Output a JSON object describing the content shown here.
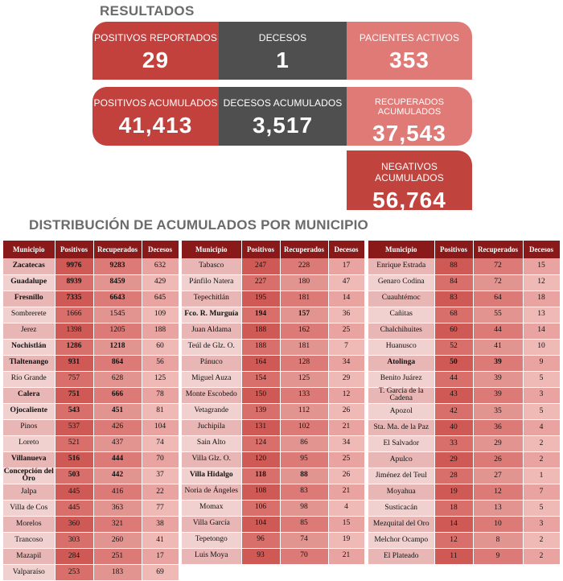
{
  "header": {
    "title": "RESULTADOS"
  },
  "cards": {
    "positivos_reportados": {
      "label": "POSITIVOS REPORTADOS",
      "value": "29"
    },
    "decesos": {
      "label": "DECESOS",
      "value": "1"
    },
    "pacientes_activos": {
      "label": "PACIENTES ACTIVOS",
      "value": "353"
    },
    "positivos_acumulados": {
      "label": "POSITIVOS ACUMULADOS",
      "value": "41,413"
    },
    "decesos_acumulados": {
      "label": "DECESOS ACUMULADOS",
      "value": "3,517"
    },
    "recuperados_acumulados": {
      "label": "RECUPERADOS ACUMULADOS",
      "value": "37,543"
    },
    "negativos_acumulados": {
      "label": "NEGATIVOS ACUMULADOS",
      "value": "56,764"
    }
  },
  "subtitle": "DISTRIBUCIÓN DE ACUMULADOS POR MUNICIPIO",
  "columns": [
    "Municipio",
    "Positivos",
    "Recuperados",
    "Decesos"
  ],
  "table1": [
    {
      "m": "Zacatecas",
      "p": "9976",
      "r": "9283",
      "d": "632",
      "b": true
    },
    {
      "m": "Guadalupe",
      "p": "8939",
      "r": "8459",
      "d": "429",
      "b": true
    },
    {
      "m": "Fresnillo",
      "p": "7335",
      "r": "6643",
      "d": "645",
      "b": true
    },
    {
      "m": "Sombrerete",
      "p": "1666",
      "r": "1545",
      "d": "109"
    },
    {
      "m": "Jerez",
      "p": "1398",
      "r": "1205",
      "d": "188"
    },
    {
      "m": "Nochistlán",
      "p": "1286",
      "r": "1218",
      "d": "60",
      "b": true
    },
    {
      "m": "Tlaltenango",
      "p": "931",
      "r": "864",
      "d": "56",
      "b": true
    },
    {
      "m": "Río Grande",
      "p": "757",
      "r": "628",
      "d": "125"
    },
    {
      "m": "Calera",
      "p": "751",
      "r": "666",
      "d": "78",
      "b": true
    },
    {
      "m": "Ojocaliente",
      "p": "543",
      "r": "451",
      "d": "81",
      "b": true
    },
    {
      "m": "Pinos",
      "p": "537",
      "r": "426",
      "d": "104"
    },
    {
      "m": "Loreto",
      "p": "521",
      "r": "437",
      "d": "74"
    },
    {
      "m": "Villanueva",
      "p": "516",
      "r": "444",
      "d": "70",
      "b": true
    },
    {
      "m": "Concepción del Oro",
      "p": "503",
      "r": "442",
      "d": "37",
      "b": true
    },
    {
      "m": "Jalpa",
      "p": "445",
      "r": "416",
      "d": "22"
    },
    {
      "m": "Villa de Cos",
      "p": "445",
      "r": "363",
      "d": "77"
    },
    {
      "m": "Morelos",
      "p": "360",
      "r": "321",
      "d": "38"
    },
    {
      "m": "Trancoso",
      "p": "303",
      "r": "260",
      "d": "41"
    },
    {
      "m": "Mazapil",
      "p": "284",
      "r": "251",
      "d": "17"
    },
    {
      "m": "Valparaíso",
      "p": "253",
      "r": "183",
      "d": "69"
    }
  ],
  "table2": [
    {
      "m": "Tabasco",
      "p": "247",
      "r": "228",
      "d": "17"
    },
    {
      "m": "Pánfilo Natera",
      "p": "227",
      "r": "180",
      "d": "47"
    },
    {
      "m": "Tepechitlán",
      "p": "195",
      "r": "181",
      "d": "14"
    },
    {
      "m": "Fco. R. Murguía",
      "p": "194",
      "r": "157",
      "d": "36",
      "b": true
    },
    {
      "m": "Juan Aldama",
      "p": "188",
      "r": "162",
      "d": "25"
    },
    {
      "m": "Teúl de Glz. O.",
      "p": "188",
      "r": "181",
      "d": "7"
    },
    {
      "m": "Pánuco",
      "p": "164",
      "r": "128",
      "d": "34"
    },
    {
      "m": "Miguel Auza",
      "p": "154",
      "r": "125",
      "d": "29"
    },
    {
      "m": "Monte Escobedo",
      "p": "150",
      "r": "133",
      "d": "12"
    },
    {
      "m": "Vetagrande",
      "p": "139",
      "r": "112",
      "d": "26"
    },
    {
      "m": "Juchipila",
      "p": "131",
      "r": "102",
      "d": "21"
    },
    {
      "m": "Sain Alto",
      "p": "124",
      "r": "86",
      "d": "34"
    },
    {
      "m": "Villa Glz. O.",
      "p": "120",
      "r": "95",
      "d": "25"
    },
    {
      "m": "Villa Hidalgo",
      "p": "118",
      "r": "88",
      "d": "26",
      "b": true
    },
    {
      "m": "Noria de Ángeles",
      "p": "108",
      "r": "83",
      "d": "21"
    },
    {
      "m": "Momax",
      "p": "106",
      "r": "98",
      "d": "4"
    },
    {
      "m": "Villa García",
      "p": "104",
      "r": "85",
      "d": "15"
    },
    {
      "m": "Tepetongo",
      "p": "96",
      "r": "74",
      "d": "19"
    },
    {
      "m": "Luis Moya",
      "p": "93",
      "r": "70",
      "d": "21"
    }
  ],
  "table3": [
    {
      "m": "Enrique Estrada",
      "p": "88",
      "r": "72",
      "d": "15"
    },
    {
      "m": "Genaro Codina",
      "p": "84",
      "r": "72",
      "d": "12"
    },
    {
      "m": "Cuauhtémoc",
      "p": "83",
      "r": "64",
      "d": "18"
    },
    {
      "m": "Cañitas",
      "p": "68",
      "r": "55",
      "d": "13"
    },
    {
      "m": "Chalchihuites",
      "p": "60",
      "r": "44",
      "d": "14"
    },
    {
      "m": "Huanusco",
      "p": "52",
      "r": "41",
      "d": "10"
    },
    {
      "m": "Atolinga",
      "p": "50",
      "r": "39",
      "d": "9",
      "b": true
    },
    {
      "m": "Benito Juárez",
      "p": "44",
      "r": "39",
      "d": "5"
    },
    {
      "m": "T. García de la Cadena",
      "p": "43",
      "r": "39",
      "d": "3"
    },
    {
      "m": "Apozol",
      "p": "42",
      "r": "35",
      "d": "5"
    },
    {
      "m": "Sta. Ma. de la Paz",
      "p": "40",
      "r": "36",
      "d": "4"
    },
    {
      "m": "El Salvador",
      "p": "33",
      "r": "29",
      "d": "2"
    },
    {
      "m": "Apulco",
      "p": "29",
      "r": "26",
      "d": "2"
    },
    {
      "m": "Jiménez del Teul",
      "p": "28",
      "r": "27",
      "d": "1"
    },
    {
      "m": "Moyahua",
      "p": "19",
      "r": "12",
      "d": "7"
    },
    {
      "m": "Susticacán",
      "p": "18",
      "r": "13",
      "d": "5"
    },
    {
      "m": "Mezquital del Oro",
      "p": "14",
      "r": "10",
      "d": "3"
    },
    {
      "m": "Melchor Ocampo",
      "p": "12",
      "r": "8",
      "d": "2"
    },
    {
      "m": "El Plateado",
      "p": "11",
      "r": "9",
      "d": "2"
    }
  ]
}
